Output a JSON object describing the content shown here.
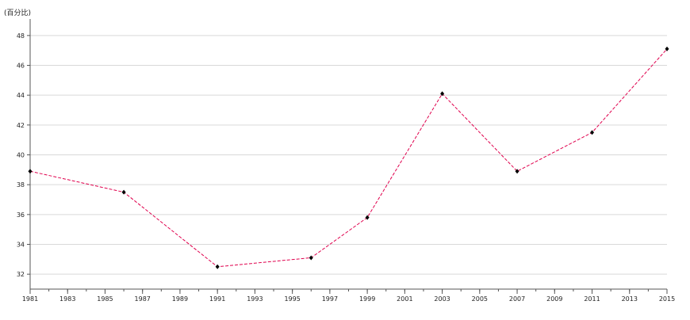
{
  "chart_data": {
    "type": "line",
    "ylabel": "(百分比)",
    "x": [
      1981,
      1986,
      1991,
      1996,
      1999,
      2003,
      2007,
      2011,
      2015
    ],
    "series": [
      {
        "values": [
          38.9,
          37.5,
          32.5,
          33.1,
          35.8,
          44.1,
          38.9,
          41.5,
          47.1
        ]
      }
    ],
    "xlim": [
      1981,
      2015
    ],
    "ylim": [
      31,
      49
    ],
    "xticks": [
      "1981",
      "1983",
      "1985",
      "1987",
      "1989",
      "1991",
      "1993",
      "1995",
      "1997",
      "1999",
      "2001",
      "2003",
      "2005",
      "2007",
      "2009",
      "2011",
      "2013",
      "2015"
    ],
    "yticks": [
      "32",
      "34",
      "36",
      "38",
      "40",
      "42",
      "44",
      "46",
      "48"
    ],
    "grid": "horizontal",
    "line_color": "#e0004d",
    "line_style": "dashed",
    "marker_color": "#000000",
    "marker": "diamond"
  }
}
